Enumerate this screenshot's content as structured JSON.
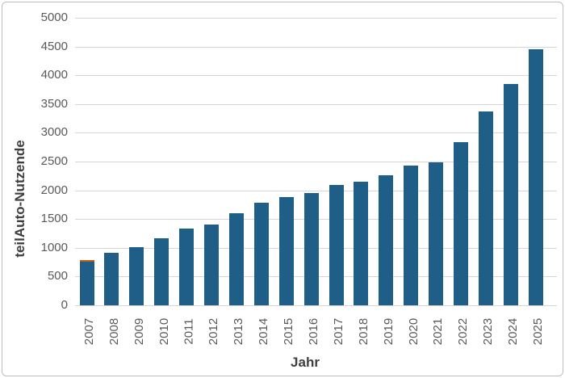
{
  "chart_data": {
    "type": "bar",
    "title": "",
    "xlabel": "Jahr",
    "ylabel": "teilAuto-Nutzende",
    "categories": [
      "2007",
      "2008",
      "2009",
      "2010",
      "2011",
      "2012",
      "2013",
      "2014",
      "2015",
      "2016",
      "2017",
      "2018",
      "2019",
      "2020",
      "2021",
      "2022",
      "2023",
      "2024",
      "2025"
    ],
    "values": [
      785,
      910,
      1015,
      1165,
      1330,
      1410,
      1600,
      1790,
      1885,
      1950,
      2100,
      2150,
      2260,
      2430,
      2490,
      2840,
      3375,
      3855,
      4450
    ],
    "segment_2007_cap": {
      "category": "2007",
      "value": 30,
      "color": "#c55a11"
    },
    "ylim": [
      0,
      5000
    ],
    "ytick_step": 500,
    "yticks": [
      "0",
      "500",
      "1000",
      "1500",
      "2000",
      "2500",
      "3000",
      "3500",
      "4000",
      "4500",
      "5000"
    ],
    "grid": "horizontal",
    "legend": "none",
    "bar_color": "#1f5e86",
    "gridline_color": "#d6d6d6",
    "tick_label_color": "#595959",
    "axis_title_color": "#3f3f3f"
  }
}
